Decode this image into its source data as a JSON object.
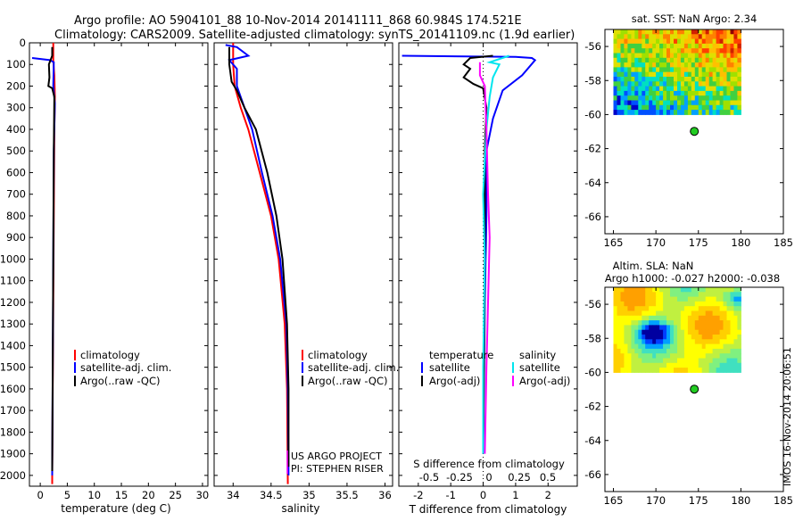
{
  "header": {
    "line1": "Argo profile: AO 5904101_88 10-Nov-2014 20141111_868 60.984S 174.521E",
    "line2": "Climatology: CARS2009. Satellite-adjusted climatology: synTS_20141109.nc (1.9d earlier)"
  },
  "colors": {
    "climatology": "#ff0000",
    "satellite": "#0000ff",
    "argo": "#000000",
    "sal_sat": "#00e5ee",
    "sal_argo": "#ff00ff"
  },
  "chart_data": [
    {
      "id": "temperature",
      "type": "line",
      "xlabel": "temperature (deg C)",
      "xlim": [
        -2,
        31
      ],
      "ylim": [
        2050,
        0
      ],
      "xticks": [
        0,
        5,
        10,
        15,
        20,
        25,
        30
      ],
      "yticks": [
        0,
        100,
        200,
        300,
        400,
        500,
        600,
        700,
        800,
        900,
        1000,
        1100,
        1200,
        1300,
        1400,
        1500,
        1600,
        1700,
        1800,
        1900,
        2000
      ],
      "legend": {
        "position": "middle-right",
        "entries": [
          "climatology",
          "satellite-adj. clim.",
          "Argo(..raw -QC)"
        ]
      },
      "series": [
        {
          "name": "climatology",
          "color": "climatology",
          "points": [
            [
              2.4,
              0
            ],
            [
              2.4,
              80
            ],
            [
              2.6,
              150
            ],
            [
              2.7,
              250
            ],
            [
              2.6,
              400
            ],
            [
              2.5,
              800
            ],
            [
              2.4,
              1200
            ],
            [
              2.3,
              1600
            ],
            [
              2.2,
              2000
            ],
            [
              2.2,
              2040
            ]
          ]
        },
        {
          "name": "satellite-adj. clim.",
          "color": "satellite",
          "points": [
            [
              -1.5,
              70
            ],
            [
              1.8,
              80
            ],
            [
              2.5,
              90
            ],
            [
              2.4,
              200
            ],
            [
              2.7,
              280
            ],
            [
              2.5,
              500
            ],
            [
              2.4,
              1000
            ],
            [
              2.3,
              1500
            ],
            [
              2.2,
              2000
            ]
          ]
        },
        {
          "name": "Argo(..raw -QC)",
          "color": "argo",
          "points": [
            [
              2.2,
              20
            ],
            [
              2.2,
              60
            ],
            [
              1.6,
              100
            ],
            [
              1.7,
              160
            ],
            [
              1.5,
              200
            ],
            [
              2.2,
              210
            ],
            [
              2.6,
              250
            ],
            [
              2.5,
              500
            ],
            [
              2.4,
              1000
            ],
            [
              2.3,
              1500
            ],
            [
              2.2,
              1980
            ]
          ]
        }
      ]
    },
    {
      "id": "salinity",
      "type": "line",
      "xlabel": "salinity",
      "xlim": [
        33.75,
        36.1
      ],
      "ylim": [
        2050,
        0
      ],
      "xticks": [
        34,
        34.5,
        35,
        35.5,
        36
      ],
      "legend": {
        "position": "middle-right",
        "entries": [
          "climatology",
          "satellite-adj. clim.",
          "Argo(..raw -QC)"
        ]
      },
      "annotations": [
        "US ARGO PROJECT",
        "PI: STEPHEN RISER"
      ],
      "series": [
        {
          "name": "climatology",
          "color": "climatology",
          "points": [
            [
              34.0,
              0
            ],
            [
              34.0,
              100
            ],
            [
              34.02,
              200
            ],
            [
              34.1,
              300
            ],
            [
              34.2,
              400
            ],
            [
              34.35,
              600
            ],
            [
              34.5,
              800
            ],
            [
              34.6,
              1000
            ],
            [
              34.68,
              1300
            ],
            [
              34.71,
              1600
            ],
            [
              34.72,
              2040
            ]
          ]
        },
        {
          "name": "satellite-adj. clim.",
          "color": "satellite",
          "points": [
            [
              33.9,
              10
            ],
            [
              34.05,
              20
            ],
            [
              34.2,
              60
            ],
            [
              33.95,
              80
            ],
            [
              34.05,
              120
            ],
            [
              34.05,
              200
            ],
            [
              34.15,
              300
            ],
            [
              34.25,
              400
            ],
            [
              34.38,
              600
            ],
            [
              34.52,
              800
            ],
            [
              34.62,
              1000
            ],
            [
              34.7,
              1300
            ],
            [
              34.72,
              1600
            ],
            [
              34.73,
              2000
            ]
          ]
        },
        {
          "name": "Argo(..raw -QC)",
          "color": "argo",
          "points": [
            [
              33.95,
              20
            ],
            [
              33.95,
              100
            ],
            [
              33.98,
              180
            ],
            [
              34.05,
              220
            ],
            [
              34.15,
              300
            ],
            [
              34.3,
              400
            ],
            [
              34.45,
              600
            ],
            [
              34.57,
              800
            ],
            [
              34.65,
              1000
            ],
            [
              34.71,
              1300
            ],
            [
              34.73,
              1600
            ],
            [
              34.73,
              1960
            ]
          ]
        }
      ]
    },
    {
      "id": "difference",
      "type": "line",
      "xlabel": "T difference from climatology",
      "xlabel2": "S difference from climatology",
      "xlim": [
        -2.6,
        2.9
      ],
      "ylim": [
        2050,
        0
      ],
      "xticks": [
        -2,
        -1,
        0,
        1,
        2
      ],
      "xticks2": [
        "-0.5",
        "-0.25",
        "0",
        "0.25",
        "0.5"
      ],
      "legend": {
        "position": "middle",
        "titles": [
          "temperature",
          "salinity"
        ],
        "entries": [
          "satellite",
          "Argo(-adj)",
          "satellite",
          "Argo(-adj)"
        ]
      },
      "series": [
        {
          "name": "T satellite",
          "color": "satellite",
          "points": [
            [
              -2.5,
              60
            ],
            [
              1.0,
              65
            ],
            [
              1.5,
              70
            ],
            [
              1.6,
              80
            ],
            [
              1.2,
              150
            ],
            [
              0.6,
              220
            ],
            [
              0.3,
              350
            ],
            [
              0.1,
              500
            ],
            [
              0.1,
              800
            ],
            [
              0.05,
              1200
            ],
            [
              0.0,
              1900
            ]
          ]
        },
        {
          "name": "T Argo(-adj)",
          "color": "argo",
          "points": [
            [
              0.3,
              60
            ],
            [
              -0.4,
              70
            ],
            [
              -0.6,
              100
            ],
            [
              -0.4,
              120
            ],
            [
              -0.6,
              160
            ],
            [
              -0.3,
              190
            ],
            [
              0.0,
              210
            ],
            [
              0.1,
              300
            ],
            [
              0.05,
              500
            ],
            [
              0.05,
              1000
            ],
            [
              0.0,
              1900
            ]
          ]
        },
        {
          "name": "S satellite",
          "color": "sal_sat",
          "points": [
            [
              0.8,
              60
            ],
            [
              0.2,
              90
            ],
            [
              0.5,
              100
            ],
            [
              0.3,
              160
            ],
            [
              0.2,
              250
            ],
            [
              0.1,
              400
            ],
            [
              0.0,
              700
            ],
            [
              0.05,
              1000
            ],
            [
              0.0,
              1500
            ],
            [
              0.0,
              1900
            ]
          ]
        },
        {
          "name": "S Argo(-adj)",
          "color": "sal_argo",
          "points": [
            [
              -0.1,
              90
            ],
            [
              -0.1,
              150
            ],
            [
              0.05,
              200
            ],
            [
              0.1,
              400
            ],
            [
              0.15,
              700
            ],
            [
              0.2,
              900
            ],
            [
              0.15,
              1200
            ],
            [
              0.1,
              1500
            ],
            [
              0.05,
              1900
            ]
          ]
        }
      ]
    },
    {
      "id": "sst_map",
      "type": "heatmap",
      "title": "sat. SST: NaN Argo: 2.34",
      "xlim": [
        164,
        185
      ],
      "ylim": [
        -67,
        -55
      ],
      "xticks": [
        165,
        170,
        175,
        180,
        185
      ],
      "yticks": [
        -56,
        -58,
        -60,
        -62,
        -64,
        -66
      ],
      "marker": [
        174.521,
        -60.984
      ]
    },
    {
      "id": "sla_map",
      "type": "heatmap",
      "title": "Altim. SLA: NaN",
      "subtitle": "Argo h1000: -0.027 h2000: -0.038",
      "xlim": [
        164,
        185
      ],
      "ylim": [
        -67,
        -55
      ],
      "xticks": [
        165,
        170,
        175,
        180,
        185
      ],
      "yticks": [
        -56,
        -58,
        -60,
        -62,
        -64,
        -66
      ],
      "marker": [
        174.521,
        -60.984
      ]
    }
  ],
  "footer": {
    "stamp": "IMOS 16-Nov-2014 20:06:51"
  }
}
